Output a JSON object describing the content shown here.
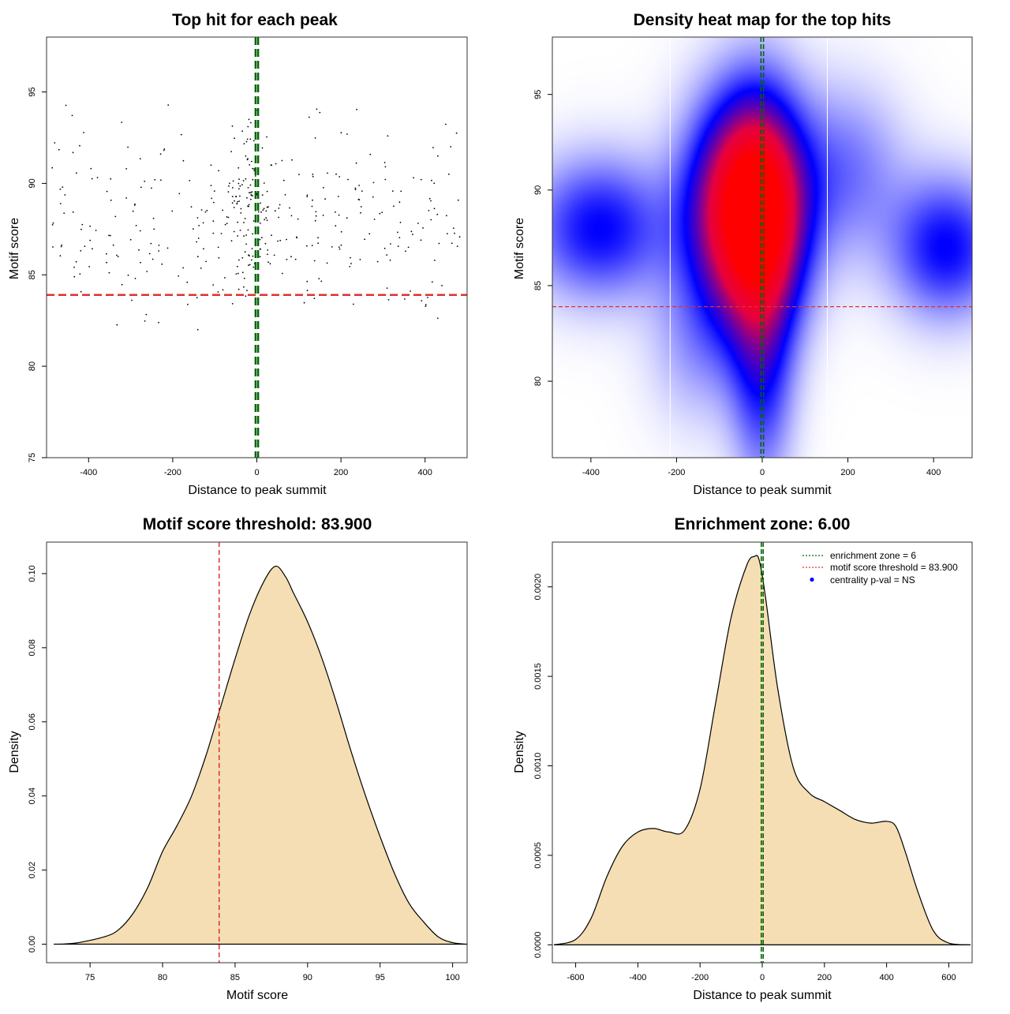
{
  "chart_data": [
    {
      "type": "scatter",
      "title": "Top hit for each peak",
      "xlabel": "Distance to peak summit",
      "ylabel": "Motif score",
      "xlim": [
        -500,
        500
      ],
      "ylim": [
        75,
        98
      ],
      "xticks": [
        "-400",
        "-200",
        "0",
        "200",
        "400"
      ],
      "yticks": [
        "75",
        "80",
        "85",
        "90",
        "95"
      ],
      "hline": 83.9,
      "vlines": [
        -3,
        3
      ],
      "point_count": 420
    },
    {
      "type": "heatmap",
      "title": "Density heat map for the top hits",
      "xlabel": "Distance to peak summit",
      "ylabel": "Motif score",
      "xlim": [
        -490,
        490
      ],
      "ylim": [
        76,
        98
      ],
      "xticks": [
        "-400",
        "-200",
        "0",
        "200",
        "400"
      ],
      "yticks": [
        "80",
        "85",
        "90",
        "95"
      ],
      "hline": 83.9,
      "vlines": [
        -3,
        3
      ],
      "white_vlines": [
        -215,
        152
      ],
      "hotspot": {
        "x": -35,
        "y": 89
      },
      "blobs": [
        {
          "x": -35,
          "y": 89,
          "sx": 90,
          "sy": 3.8,
          "w": 1.0
        },
        {
          "x": 0,
          "y": 88,
          "sx": 60,
          "sy": 4.5,
          "w": 0.35
        },
        {
          "x": -380,
          "y": 88,
          "sx": 110,
          "sy": 2.5,
          "w": 0.35
        },
        {
          "x": 430,
          "y": 87,
          "sx": 90,
          "sy": 2.5,
          "w": 0.35
        },
        {
          "x": 0,
          "y": 80,
          "sx": 50,
          "sy": 4,
          "w": 0.25
        },
        {
          "x": 200,
          "y": 91,
          "sx": 90,
          "sy": 3,
          "w": 0.18
        },
        {
          "x": -150,
          "y": 82,
          "sx": 80,
          "sy": 3,
          "w": 0.12
        }
      ]
    },
    {
      "type": "area",
      "title": "Motif score threshold: 83.900",
      "xlabel": "Motif score",
      "ylabel": "Density",
      "xlim": [
        72,
        101
      ],
      "ylim": [
        -0.005,
        0.1085
      ],
      "xticks": [
        75,
        80,
        85,
        90,
        95,
        100
      ],
      "yticks": [
        "0.00",
        "0.02",
        "0.04",
        "0.06",
        "0.08",
        "0.10"
      ],
      "vline": 83.9,
      "x": [
        72.5,
        74,
        76,
        77,
        78,
        79,
        80,
        81,
        82,
        83,
        84,
        85,
        86,
        87,
        87.8,
        88.5,
        89,
        90,
        91,
        92,
        93,
        94,
        95,
        96,
        97,
        98,
        99,
        100,
        101
      ],
      "y": [
        0.0,
        0.0003,
        0.002,
        0.004,
        0.0085,
        0.0155,
        0.025,
        0.032,
        0.04,
        0.051,
        0.064,
        0.077,
        0.089,
        0.098,
        0.102,
        0.099,
        0.095,
        0.087,
        0.077,
        0.065,
        0.052,
        0.04,
        0.029,
        0.019,
        0.011,
        0.006,
        0.002,
        0.0004,
        0.0
      ]
    },
    {
      "type": "area",
      "title": "Enrichment zone: 6.00",
      "xlabel": "Distance to peak summit",
      "ylabel": "Density",
      "xlim": [
        -675,
        675
      ],
      "ylim": [
        -0.0001,
        0.00225
      ],
      "xticks": [
        "-600",
        "-400",
        "-200",
        "0",
        "200",
        "400",
        "600"
      ],
      "yticks": [
        "0.0000",
        "0.0005",
        "0.0010",
        "0.0015",
        "0.0020"
      ],
      "vlines": [
        -3,
        3
      ],
      "x": [
        -670,
        -600,
        -550,
        -500,
        -450,
        -400,
        -350,
        -300,
        -250,
        -200,
        -150,
        -100,
        -50,
        -25,
        -10,
        10,
        50,
        100,
        150,
        200,
        250,
        300,
        350,
        400,
        430,
        460,
        500,
        550,
        600,
        670
      ],
      "y": [
        0.0,
        3e-05,
        0.00015,
        0.00038,
        0.00055,
        0.00063,
        0.00065,
        0.00063,
        0.00064,
        0.00087,
        0.00135,
        0.00183,
        0.00212,
        0.00217,
        0.00215,
        0.00195,
        0.00143,
        0.00099,
        0.00085,
        0.0008,
        0.00075,
        0.0007,
        0.00068,
        0.00069,
        0.00066,
        0.00052,
        0.0003,
        8e-05,
        1e-05,
        0.0
      ],
      "legend": [
        {
          "label": "enrichment zone = 6",
          "color": "#006400",
          "style": "dotted"
        },
        {
          "label": "motif score threshold = 83.900",
          "color": "#e03030",
          "style": "dotted"
        },
        {
          "label": "centrality p-val = NS",
          "color": "#0000ff",
          "style": "point"
        }
      ],
      "legend_position": "top-right"
    }
  ],
  "colors": {
    "fill": "#f5deb3",
    "threshold": "#e03030",
    "zone": "#006400",
    "heat_low": "#ffffff",
    "heat_mid": "#0000ff",
    "heat_high": "#ff0000"
  }
}
